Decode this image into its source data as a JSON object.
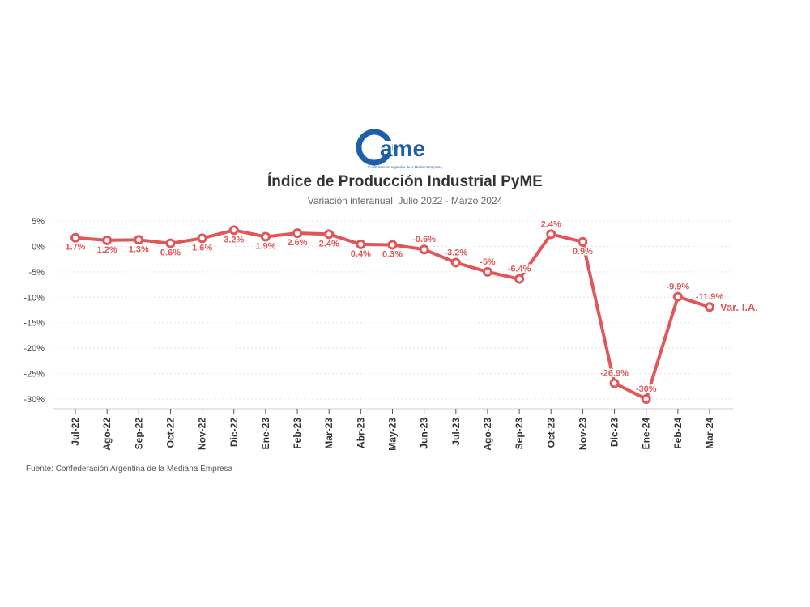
{
  "logo": {
    "wordmark": "ame",
    "tagline": "Confederación Argentina de la Mediana Empresa"
  },
  "chart_data": {
    "type": "line",
    "title": "Índice de Producción Industrial PyME",
    "subtitle": "Variación interanual. Julio 2022 - Marzo 2024",
    "categories": [
      "Jul-22",
      "Ago-22",
      "Sep-22",
      "Oct-22",
      "Nov-22",
      "Dic-22",
      "Ene-23",
      "Feb-23",
      "Mar-23",
      "Abr-23",
      "May-23",
      "Jun-23",
      "Jul-23",
      "Ago-23",
      "Sep-23",
      "Oct-23",
      "Nov-23",
      "Dic-23",
      "Ene-24",
      "Feb-24",
      "Mar-24"
    ],
    "series": [
      {
        "name": "Var. I.A.",
        "color": "#e15759",
        "values": [
          1.7,
          1.2,
          1.3,
          0.6,
          1.6,
          3.2,
          1.9,
          2.6,
          2.4,
          0.4,
          0.3,
          -0.6,
          -3.2,
          -5,
          -6.4,
          2.4,
          0.9,
          -26.9,
          -30,
          -9.9,
          -11.9
        ],
        "labels": [
          "1.7%",
          "1.2%",
          "1.3%",
          "0.6%",
          "1.6%",
          "3.2%",
          "1.9%",
          "2.6%",
          "2.4%",
          "0.4%",
          "0.3%",
          "-0.6%",
          "-3.2%",
          "-5%",
          "-6.4%",
          "2.4%",
          "0.9%",
          "-26.9%",
          "-30%",
          "-9.9%",
          "-11.9%"
        ]
      }
    ],
    "yticks": [
      "5%",
      "0%",
      "-5%",
      "-10%",
      "-15%",
      "-20%",
      "-25%",
      "-30%"
    ],
    "ytick_values": [
      5,
      0,
      -5,
      -10,
      -15,
      -20,
      -25,
      -30
    ],
    "ylim": [
      -30,
      5
    ],
    "grid": true,
    "xlabel": "",
    "ylabel": ""
  },
  "source": "Fuente: Confederación Argentina de la Mediana Empresa"
}
